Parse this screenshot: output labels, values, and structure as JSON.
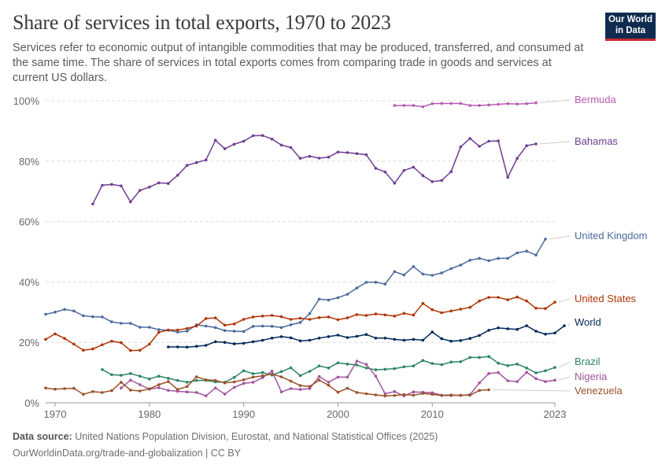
{
  "header": {
    "title": "Share of services in total exports, 1970 to 2023",
    "subtitle": "Services refer to economic output of intangible commodities that may be produced, transferred, and consumed at the same time. The share of services in total exports comes from comparing trade in goods and services at current US dollars.",
    "logo_line1": "Our World",
    "logo_line2": "in Data"
  },
  "footer": {
    "source_label": "Data source:",
    "source_text": "United Nations Population Division, Eurostat, and National Statistical Offices (2025)",
    "url_text": "OurWorldinData.org/trade-and-globalization | CC BY"
  },
  "chart_data": {
    "type": "line",
    "title": "Share of services in total exports, 1970 to 2023",
    "xlim": [
      1969,
      2023
    ],
    "ylim": [
      0,
      100
    ],
    "x_ticks": [
      1970,
      1980,
      1990,
      2000,
      2010,
      2023
    ],
    "y_ticks": [
      0,
      20,
      40,
      60,
      80,
      100
    ],
    "y_tick_labels": [
      "0%",
      "20%",
      "40%",
      "60%",
      "80%",
      "100%"
    ],
    "grid": "horizontal dashed",
    "legend": "right, labels at line ends",
    "series": [
      {
        "name": "Bermuda",
        "color": "#b75ab3",
        "start": 2006,
        "values": [
          98.4,
          98.4,
          98.4,
          98.0,
          99.0,
          99.1,
          99.1,
          99.1,
          98.4,
          98.4,
          98.6,
          98.8,
          99.0,
          98.9,
          99.0,
          99.3
        ]
      },
      {
        "name": "Bahamas",
        "color": "#6d3e91",
        "start": 1974,
        "values": [
          65.8,
          72.0,
          72.3,
          71.8,
          66.5,
          70.3,
          71.4,
          72.8,
          72.6,
          75.3,
          78.6,
          79.5,
          80.4,
          86.9,
          84.1,
          85.6,
          86.6,
          88.4,
          88.5,
          87.3,
          85.3,
          84.5,
          80.9,
          81.6,
          81.0,
          81.3,
          83.0,
          82.8,
          82.5,
          82.1,
          77.6,
          76.4,
          72.7,
          76.9,
          78.0,
          75.2,
          73.2,
          73.6,
          76.5,
          84.7,
          87.5,
          84.9,
          86.6,
          86.7,
          74.6,
          80.9,
          85.1,
          85.7
        ]
      },
      {
        "name": "United Kingdom",
        "color": "#4c6a9c",
        "start": 1969,
        "values": [
          29.3,
          30.0,
          30.9,
          30.4,
          28.8,
          28.5,
          28.4,
          26.8,
          26.3,
          26.3,
          25.0,
          25.0,
          24.2,
          24.0,
          23.4,
          23.7,
          25.8,
          25.4,
          24.9,
          23.9,
          23.7,
          23.6,
          25.3,
          25.4,
          25.3,
          24.9,
          25.8,
          26.6,
          29.5,
          34.3,
          34.0,
          34.8,
          35.9,
          38.0,
          39.9,
          39.9,
          39.3,
          43.4,
          42.3,
          45.1,
          42.6,
          42.2,
          43.0,
          44.4,
          45.6,
          47.2,
          47.8,
          47.0,
          47.8,
          47.8,
          49.6,
          50.2,
          48.9,
          54.2
        ]
      },
      {
        "name": "United States",
        "color": "#b13507",
        "start": 1969,
        "values": [
          21.0,
          22.8,
          21.3,
          19.4,
          17.4,
          17.8,
          19.2,
          20.4,
          19.9,
          17.3,
          17.4,
          19.4,
          23.3,
          24.1,
          24.1,
          24.6,
          25.4,
          27.9,
          28.1,
          25.7,
          26.1,
          27.6,
          28.4,
          28.7,
          28.9,
          28.5,
          27.6,
          28.0,
          27.6,
          28.2,
          28.4,
          27.5,
          28.1,
          29.2,
          28.9,
          29.4,
          29.1,
          28.7,
          29.6,
          29.0,
          32.9,
          30.8,
          29.8,
          30.4,
          31.0,
          31.6,
          33.7,
          34.9,
          34.9,
          34.1,
          35.0,
          33.7,
          31.3,
          31.2,
          33.3
        ]
      },
      {
        "name": "World",
        "color": "#00295b",
        "start": 1982,
        "values": [
          18.5,
          18.5,
          18.4,
          18.7,
          19.0,
          20.2,
          20.0,
          19.5,
          19.7,
          20.2,
          20.7,
          21.4,
          21.9,
          21.5,
          20.5,
          20.7,
          21.4,
          21.9,
          22.4,
          21.6,
          22.0,
          22.6,
          21.4,
          21.4,
          21.0,
          20.7,
          21.0,
          20.7,
          23.4,
          21.2,
          20.4,
          20.6,
          21.3,
          22.3,
          24.0,
          24.8,
          24.5,
          24.3,
          25.5,
          23.7,
          22.7,
          23.1,
          25.5
        ]
      },
      {
        "name": "Brazil",
        "color": "#2c8465",
        "start": 1975,
        "values": [
          11.0,
          9.3,
          9.1,
          9.7,
          8.8,
          7.9,
          8.8,
          8.1,
          7.4,
          6.8,
          7.4,
          7.4,
          6.9,
          6.8,
          8.4,
          10.6,
          9.6,
          10.0,
          9.2,
          10.3,
          11.6,
          9.0,
          10.4,
          12.2,
          11.5,
          13.2,
          12.8,
          12.5,
          11.5,
          10.9,
          11.1,
          11.3,
          11.9,
          12.2,
          14.0,
          13.0,
          12.6,
          13.5,
          13.6,
          15.0,
          15.0,
          15.3,
          13.1,
          12.3,
          12.8,
          11.5,
          9.9,
          10.6,
          11.7
        ]
      },
      {
        "name": "Nigeria",
        "color": "#a2559c",
        "start": 1977,
        "values": [
          4.9,
          7.5,
          6.0,
          4.5,
          5.0,
          4.1,
          3.8,
          3.6,
          3.4,
          2.3,
          4.9,
          2.9,
          5.1,
          6.4,
          6.8,
          8.3,
          10.5,
          3.6,
          4.7,
          4.4,
          4.7,
          8.7,
          6.8,
          8.5,
          8.5,
          13.8,
          12.7,
          8.8,
          3.0,
          3.7,
          2.3,
          3.6,
          3.5,
          3.3,
          2.5,
          2.6,
          2.4,
          2.7,
          6.6,
          9.7,
          10.0,
          7.3,
          7.0,
          10.1,
          8.0,
          7.0,
          7.5
        ]
      },
      {
        "name": "Venezuela",
        "color": "#9a5129",
        "start": 1969,
        "values": [
          4.9,
          4.5,
          4.7,
          4.8,
          2.8,
          3.7,
          3.4,
          4.0,
          6.8,
          4.2,
          3.9,
          4.6,
          6.0,
          7.0,
          4.4,
          5.4,
          8.6,
          7.6,
          7.4,
          6.6,
          6.9,
          7.6,
          8.5,
          8.9,
          9.5,
          8.6,
          7.2,
          5.7,
          5.4,
          7.5,
          5.8,
          3.5,
          4.8,
          3.4,
          3.0,
          2.6,
          2.3,
          2.4,
          2.7,
          2.5,
          3.1,
          2.8,
          2.4,
          2.4,
          2.5,
          2.5,
          4.1,
          4.3
        ]
      }
    ]
  }
}
